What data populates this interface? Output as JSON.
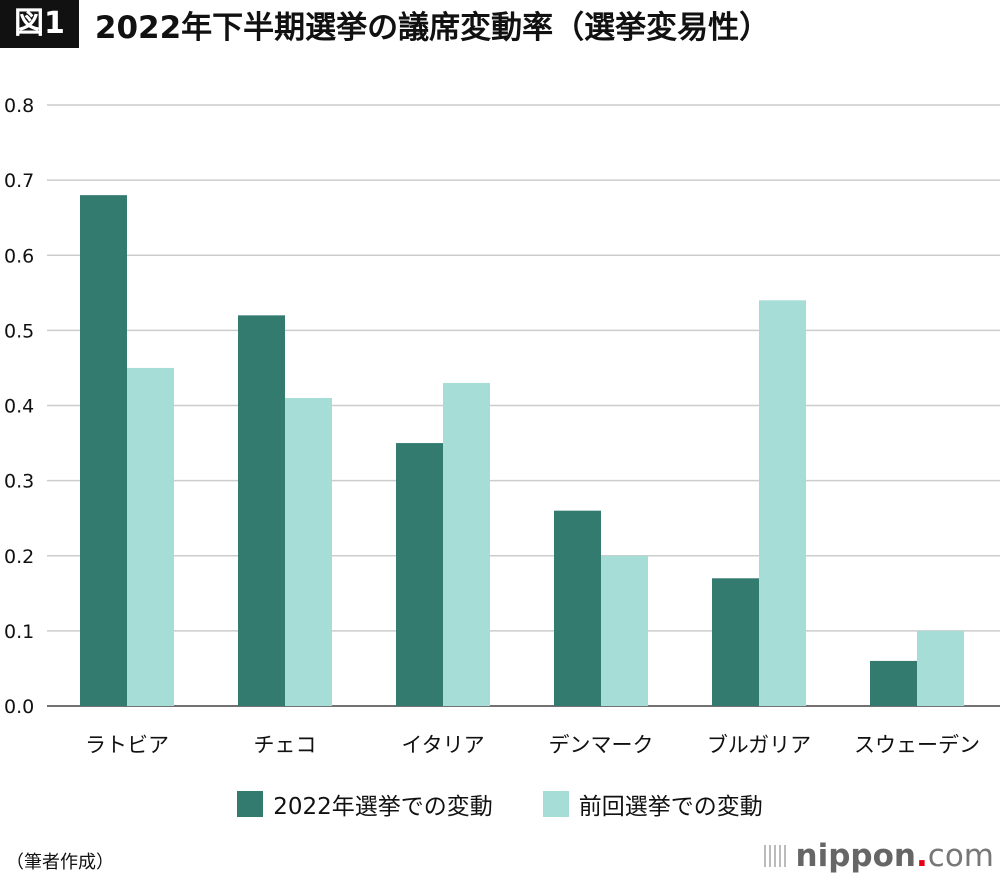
{
  "title": {
    "badge": "図1",
    "text": "2022年下半期選挙の議席変動率（選挙変易性）"
  },
  "chart_data": {
    "type": "bar",
    "title": "2022年下半期選挙の議席変動率（選挙変易性）",
    "categories": [
      "ラトビア",
      "チェコ",
      "イタリア",
      "デンマーク",
      "ブルガリア",
      "スウェーデン"
    ],
    "series": [
      {
        "name": "2022年選挙での変動",
        "color": "#347b6f",
        "values": [
          0.68,
          0.52,
          0.35,
          0.26,
          0.17,
          0.06
        ]
      },
      {
        "name": "前回選挙での変動",
        "color": "#a6ddd6",
        "values": [
          0.45,
          0.41,
          0.43,
          0.2,
          0.54,
          0.1
        ]
      }
    ],
    "ylim": [
      0,
      0.8
    ],
    "yticks": [
      "0.0",
      "0.1",
      "0.2",
      "0.3",
      "0.4",
      "0.5",
      "0.6",
      "0.7",
      "0.8"
    ],
    "grid": true,
    "legend": "bottom"
  },
  "note": "（筆者作成）",
  "logo": {
    "name": "nippon",
    "dot": ".",
    "suffix": "com"
  }
}
